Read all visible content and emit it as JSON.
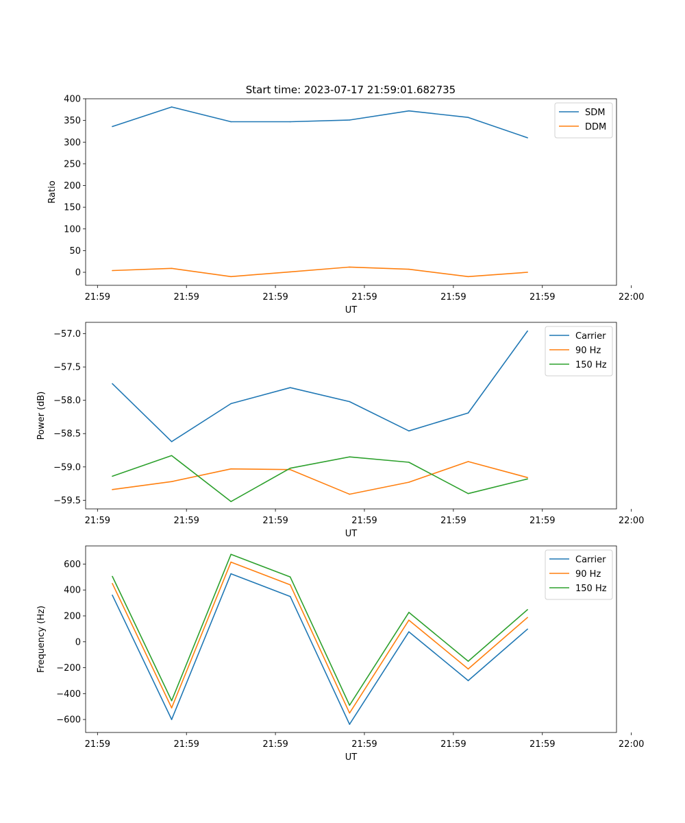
{
  "figure_title": "Start time: 2023-07-17 21:59:01.682735",
  "chart_data": [
    {
      "type": "line",
      "ylabel": "Ratio",
      "xlabel": "UT",
      "ylim": [
        -30,
        400
      ],
      "yticks": [
        0,
        50,
        100,
        150,
        200,
        250,
        300,
        350,
        400
      ],
      "ytick_labels": [
        "0",
        "50",
        "100",
        "150",
        "200",
        "250",
        "300",
        "350",
        "400"
      ],
      "legend_position": "top-right",
      "series": [
        {
          "name": "SDM",
          "color": "#1f77b4",
          "values": [
            336,
            381,
            347,
            347,
            351,
            372,
            357,
            310
          ]
        },
        {
          "name": "DDM",
          "color": "#ff7f0e",
          "values": [
            4,
            9,
            -10,
            1,
            12,
            7,
            -10,
            0
          ]
        }
      ]
    },
    {
      "type": "line",
      "ylabel": "Power (dB)",
      "xlabel": "UT",
      "ylim": [
        -59.63,
        -56.83
      ],
      "yticks": [
        -59.5,
        -59.0,
        -58.5,
        -58.0,
        -57.5,
        -57.0
      ],
      "ytick_labels": [
        "−59.5",
        "−59.0",
        "−58.5",
        "−58.0",
        "−57.5",
        "−57.0"
      ],
      "legend_position": "top-right",
      "series": [
        {
          "name": "Carrier",
          "color": "#1f77b4",
          "values": [
            -57.75,
            -58.62,
            -58.05,
            -57.81,
            -58.02,
            -58.46,
            -58.19,
            -56.96
          ]
        },
        {
          "name": "90 Hz",
          "color": "#ff7f0e",
          "values": [
            -59.34,
            -59.22,
            -59.03,
            -59.04,
            -59.41,
            -59.23,
            -58.92,
            -59.16
          ]
        },
        {
          "name": "150 Hz",
          "color": "#2ca02c",
          "values": [
            -59.14,
            -58.83,
            -59.52,
            -59.02,
            -58.85,
            -58.93,
            -59.4,
            -59.18
          ]
        }
      ]
    },
    {
      "type": "line",
      "ylabel": "Frequency (Hz)",
      "xlabel": "UT",
      "ylim": [
        -700,
        740
      ],
      "yticks": [
        -600,
        -400,
        -200,
        0,
        200,
        400,
        600
      ],
      "ytick_labels": [
        "−600",
        "−400",
        "−200",
        "0",
        "200",
        "400",
        "600"
      ],
      "legend_position": "top-right",
      "series": [
        {
          "name": "Carrier",
          "color": "#1f77b4",
          "values": [
            360,
            -600,
            525,
            350,
            -637,
            77,
            -300,
            98
          ]
        },
        {
          "name": "90 Hz",
          "color": "#ff7f0e",
          "values": [
            450,
            -510,
            615,
            440,
            -550,
            167,
            -210,
            188
          ]
        },
        {
          "name": "150 Hz",
          "color": "#2ca02c",
          "values": [
            505,
            -455,
            675,
            500,
            -490,
            227,
            -150,
            248
          ]
        }
      ]
    }
  ],
  "x_axis": {
    "point_count": 8,
    "xlim": [
      -0.45,
      8.5
    ],
    "tick_positions": [
      -0.25,
      1.25,
      2.75,
      4.25,
      5.75,
      7.25,
      8.75
    ],
    "tick_labels": [
      "21:59",
      "21:59",
      "21:59",
      "21:59",
      "21:59",
      "21:59",
      "22:00"
    ]
  }
}
